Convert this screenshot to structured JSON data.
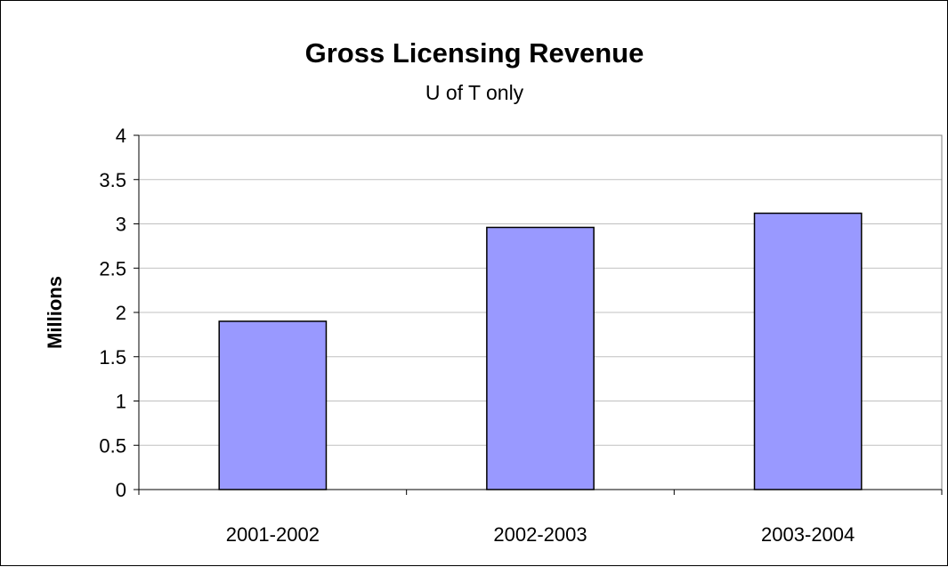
{
  "chart_data": {
    "type": "bar",
    "title": "Gross Licensing Revenue",
    "subtitle": "U of T only",
    "xlabel": "",
    "ylabel": "Millions",
    "categories": [
      "2001-2002",
      "2002-2003",
      "2003-2004"
    ],
    "values": [
      1.9,
      2.96,
      3.12
    ],
    "ylim": [
      0,
      4
    ],
    "yticks": [
      "0",
      "0.5",
      "1",
      "1.5",
      "2",
      "2.5",
      "3",
      "3.5",
      "4"
    ],
    "grid": true,
    "legend": "none",
    "bar_color": "#9999ff",
    "bar_border_color": "#000000",
    "grid_color": "#c0c0c0"
  }
}
